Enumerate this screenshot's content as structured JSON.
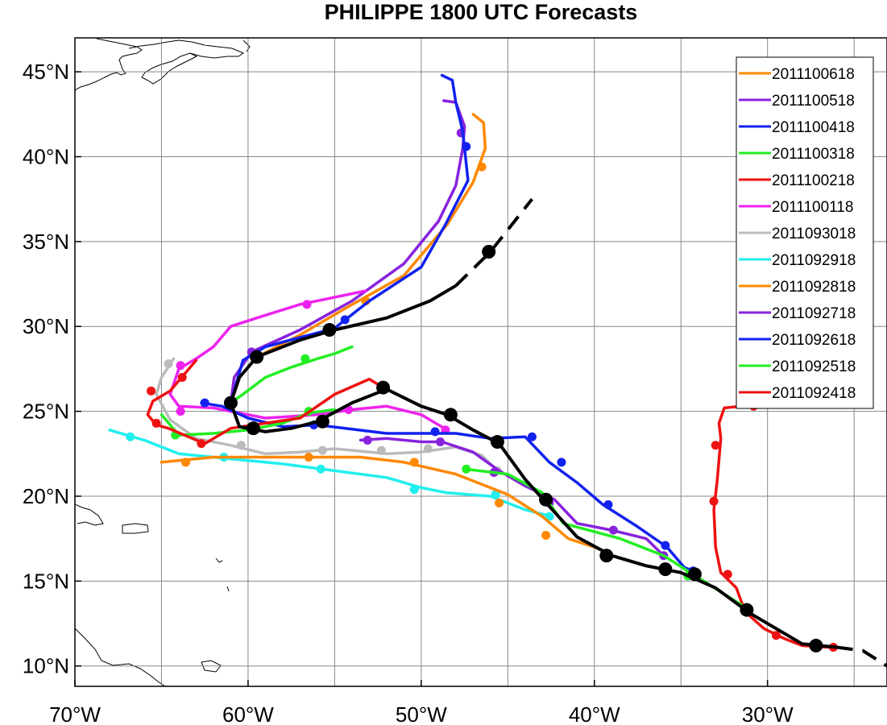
{
  "chart_data": {
    "type": "line",
    "title": "PHILIPPE 1800 UTC Forecasts",
    "xlabel": "",
    "ylabel": "",
    "xlim": [
      -70,
      -23.1
    ],
    "ylim": [
      8.8,
      47
    ],
    "x_ticks": [
      {
        "value": -70,
        "label": "70°W"
      },
      {
        "value": -60,
        "label": "60°W"
      },
      {
        "value": -50,
        "label": "50°W"
      },
      {
        "value": -40,
        "label": "40°W"
      },
      {
        "value": -30,
        "label": "30°W"
      }
    ],
    "y_ticks": [
      {
        "value": 10,
        "label": "10°N"
      },
      {
        "value": 15,
        "label": "15°N"
      },
      {
        "value": 20,
        "label": "20°N"
      },
      {
        "value": 25,
        "label": "25°N"
      },
      {
        "value": 30,
        "label": "30°N"
      },
      {
        "value": 35,
        "label": "35°N"
      },
      {
        "value": 40,
        "label": "40°N"
      },
      {
        "value": 45,
        "label": "45°N"
      }
    ],
    "grid_lon": [
      -65,
      -60,
      -55,
      -50,
      -45,
      -40,
      -35,
      -30,
      -25
    ],
    "grid_lat": [
      10,
      15,
      20,
      25,
      30,
      35,
      40,
      45
    ],
    "grid": true,
    "legend_position": "top-right",
    "best_track": {
      "color": "#000000",
      "solid": [
        [
          -26,
          11.1
        ],
        [
          -28,
          11.3
        ],
        [
          -31,
          13.1
        ],
        [
          -33,
          14.6
        ],
        [
          -35,
          15.5
        ],
        [
          -37,
          15.9
        ],
        [
          -39,
          16.5
        ],
        [
          -41,
          17.6
        ],
        [
          -42.6,
          19.4
        ],
        [
          -44,
          21
        ],
        [
          -45.5,
          23.1
        ],
        [
          -47,
          23.9
        ],
        [
          -48.5,
          24.8
        ],
        [
          -50,
          25.3
        ],
        [
          -52,
          26.3
        ],
        [
          -54,
          25.5
        ],
        [
          -56,
          24.4
        ],
        [
          -57.5,
          24
        ],
        [
          -59,
          23.8
        ],
        [
          -60.5,
          24.1
        ],
        [
          -61,
          25.5
        ],
        [
          -60.5,
          27
        ],
        [
          -59.5,
          28.2
        ],
        [
          -57,
          29.2
        ],
        [
          -55,
          29.8
        ],
        [
          -52,
          30.5
        ],
        [
          -49.5,
          31.5
        ],
        [
          -48,
          32.4
        ]
      ],
      "dashed_end": [
        [
          -26,
          11.1
        ],
        [
          -24.5,
          10.9
        ],
        [
          -23.1,
          10
        ]
      ],
      "dashed_start": [
        [
          -48,
          32.4
        ],
        [
          -46,
          34.4
        ],
        [
          -43.6,
          37.5
        ]
      ],
      "points": [
        [
          -27.2,
          11.2
        ],
        [
          -31.2,
          13.3
        ],
        [
          -34.2,
          15.4
        ],
        [
          -35.9,
          15.7
        ],
        [
          -39.3,
          16.5
        ],
        [
          -42.8,
          19.8
        ],
        [
          -45.6,
          23.2
        ],
        [
          -48.3,
          24.8
        ],
        [
          -52.2,
          26.4
        ],
        [
          -55.7,
          24.4
        ],
        [
          -59.7,
          24
        ],
        [
          -61,
          25.5
        ],
        [
          -59.5,
          28.2
        ],
        [
          -55.3,
          29.8
        ],
        [
          -46.1,
          34.4
        ]
      ]
    },
    "series": [
      {
        "name": "2011100618",
        "color": "#ff8800",
        "path": [
          [
            -59.5,
            28.2
          ],
          [
            -57,
            29.5
          ],
          [
            -54.5,
            31
          ],
          [
            -51,
            33
          ],
          [
            -48.5,
            36
          ],
          [
            -47,
            38.5
          ],
          [
            -46.3,
            40.5
          ],
          [
            -46.4,
            42
          ],
          [
            -47,
            42.5
          ]
        ],
        "points": [
          [
            -59.5,
            28.2
          ],
          [
            -53.2,
            31.5
          ],
          [
            -46.5,
            39.4
          ]
        ]
      },
      {
        "name": "2011100518",
        "color": "#8822dd",
        "path": [
          [
            -61,
            25.5
          ],
          [
            -60.8,
            27
          ],
          [
            -59.8,
            28.5
          ],
          [
            -57,
            29.8
          ],
          [
            -54,
            31.5
          ],
          [
            -51,
            33.7
          ],
          [
            -49,
            36.2
          ],
          [
            -48,
            38.3
          ],
          [
            -47.6,
            40.5
          ],
          [
            -47.5,
            41.8
          ],
          [
            -48,
            43.2
          ],
          [
            -48.7,
            43.3
          ]
        ],
        "points": [
          [
            -61,
            25.5
          ],
          [
            -59.8,
            28.5
          ],
          [
            -47.7,
            41.4
          ]
        ]
      },
      {
        "name": "2011100418",
        "color": "#1122ee",
        "path": [
          [
            -61,
            25.5
          ],
          [
            -60.3,
            28
          ],
          [
            -59,
            28.8
          ],
          [
            -55,
            29.9
          ],
          [
            -53,
            31.5
          ],
          [
            -50,
            33.5
          ],
          [
            -48.6,
            36
          ],
          [
            -47.3,
            38.6
          ],
          [
            -47.6,
            41.5
          ],
          [
            -48,
            43.2
          ],
          [
            -48.2,
            44.5
          ],
          [
            -48.8,
            44.8
          ]
        ],
        "points": [
          [
            -61,
            25.5
          ],
          [
            -54.4,
            30.4
          ],
          [
            -47.4,
            40.6
          ]
        ]
      },
      {
        "name": "2011100318",
        "color": "#22ee22",
        "path": [
          [
            -61,
            25.5
          ],
          [
            -60.3,
            26
          ],
          [
            -59,
            27
          ],
          [
            -57.5,
            27.6
          ],
          [
            -56,
            28.1
          ],
          [
            -55,
            28.4
          ],
          [
            -54,
            28.8
          ]
        ],
        "points": [
          [
            -56.7,
            28.1
          ]
        ]
      },
      {
        "name": "2011100218",
        "color": "#ee1111",
        "path": [
          [
            -31,
            25.3
          ],
          [
            -31.5,
            25.3
          ],
          [
            -32.5,
            25.2
          ],
          [
            -32.8,
            24.3
          ],
          [
            -32.7,
            23.4
          ],
          [
            -32.9,
            21
          ],
          [
            -33.1,
            19.2
          ],
          [
            -33,
            17
          ],
          [
            -32.7,
            15.5
          ],
          [
            -31.8,
            14.6
          ],
          [
            -31.3,
            13.2
          ],
          [
            -30.2,
            12.2
          ],
          [
            -29,
            11.6
          ],
          [
            -28,
            11.2
          ],
          [
            -26.5,
            11.1
          ]
        ],
        "points": [
          [
            -30.8,
            25.3
          ],
          [
            -33,
            23
          ],
          [
            -33.1,
            19.7
          ],
          [
            -32.3,
            15.4
          ],
          [
            -31.2,
            13.3
          ],
          [
            -29.5,
            11.8
          ],
          [
            -27.3,
            11.2
          ],
          [
            -26.2,
            11.1
          ]
        ]
      },
      {
        "name": "2011100118",
        "color": "#ee22ee",
        "path": [
          [
            -53.2,
            32.1
          ],
          [
            -57,
            31.3
          ],
          [
            -59.5,
            30.5
          ],
          [
            -61,
            30
          ],
          [
            -62,
            28.8
          ],
          [
            -63,
            28.1
          ],
          [
            -64,
            27.5
          ],
          [
            -64.5,
            26
          ],
          [
            -64,
            25.3
          ],
          [
            -62,
            25.2
          ],
          [
            -59,
            24.6
          ],
          [
            -56,
            24.8
          ],
          [
            -54,
            25.1
          ],
          [
            -52,
            25.3
          ],
          [
            -50,
            24.8
          ],
          [
            -48.5,
            23.9
          ]
        ],
        "points": [
          [
            -56.6,
            31.3
          ],
          [
            -63.9,
            27.7
          ],
          [
            -63.9,
            25
          ],
          [
            -54.2,
            25.1
          ],
          [
            -48.6,
            23.9
          ]
        ]
      },
      {
        "name": "2011093018",
        "color": "#bbbbbb",
        "path": [
          [
            -64.3,
            28.1
          ],
          [
            -65,
            27
          ],
          [
            -65.3,
            26
          ],
          [
            -64.5,
            24.5
          ],
          [
            -63,
            23.4
          ],
          [
            -61,
            23
          ],
          [
            -59,
            22.5
          ],
          [
            -57,
            22.6
          ],
          [
            -55,
            22.8
          ],
          [
            -52,
            22.5
          ],
          [
            -50,
            22.6
          ],
          [
            -48,
            22.9
          ],
          [
            -46.5,
            22.4
          ],
          [
            -45.6,
            21.5
          ]
        ],
        "points": [
          [
            -64.6,
            27.8
          ],
          [
            -60.4,
            23
          ],
          [
            -55.7,
            22.7
          ],
          [
            -52.3,
            22.7
          ],
          [
            -49.6,
            22.8
          ],
          [
            -45.6,
            21.5
          ]
        ]
      },
      {
        "name": "2011092918",
        "color": "#22eeee",
        "path": [
          [
            -68,
            23.9
          ],
          [
            -66,
            23.3
          ],
          [
            -64,
            22.5
          ],
          [
            -61,
            22.2
          ],
          [
            -58,
            21.9
          ],
          [
            -55,
            21.5
          ],
          [
            -52,
            21.1
          ],
          [
            -50,
            20.5
          ],
          [
            -48.5,
            20.2
          ],
          [
            -46,
            20
          ],
          [
            -44,
            19.2
          ],
          [
            -42.4,
            18.8
          ]
        ],
        "points": [
          [
            -66.8,
            23.5
          ],
          [
            -61.4,
            22.3
          ],
          [
            -55.8,
            21.6
          ],
          [
            -50.4,
            20.4
          ],
          [
            -45.7,
            20.1
          ],
          [
            -42.6,
            18.8
          ]
        ]
      },
      {
        "name": "2011092818",
        "color": "#ff8800",
        "path": [
          [
            -65,
            22
          ],
          [
            -62,
            22.3
          ],
          [
            -59,
            22.3
          ],
          [
            -56,
            22.3
          ],
          [
            -53.5,
            22.3
          ],
          [
            -51,
            22
          ],
          [
            -48,
            21.3
          ],
          [
            -45,
            20.1
          ],
          [
            -43,
            18.8
          ],
          [
            -41.5,
            17.5
          ],
          [
            -40,
            17
          ],
          [
            -39,
            16.6
          ]
        ],
        "points": [
          [
            -63.6,
            22
          ],
          [
            -56.5,
            22.3
          ],
          [
            -50.4,
            22
          ],
          [
            -45.5,
            19.6
          ],
          [
            -42.8,
            17.7
          ],
          [
            -39.3,
            16.6
          ]
        ]
      },
      {
        "name": "2011092718",
        "color": "#8822dd",
        "path": [
          [
            -53.5,
            23.3
          ],
          [
            -52,
            23.4
          ],
          [
            -50,
            23.2
          ],
          [
            -48.8,
            23.2
          ],
          [
            -47,
            22.6
          ],
          [
            -45.5,
            21.5
          ],
          [
            -44,
            20.6
          ],
          [
            -42.3,
            19.8
          ],
          [
            -41,
            18.4
          ],
          [
            -39,
            18
          ],
          [
            -37,
            17.5
          ],
          [
            -36,
            16.5
          ]
        ],
        "points": [
          [
            -53.1,
            23.3
          ],
          [
            -48.9,
            23.2
          ],
          [
            -45.8,
            21.4
          ],
          [
            -42.6,
            19.6
          ],
          [
            -38.9,
            18
          ],
          [
            -36,
            16.5
          ]
        ]
      },
      {
        "name": "2011092618",
        "color": "#1122ee",
        "path": [
          [
            -62.7,
            25.5
          ],
          [
            -61.5,
            25.3
          ],
          [
            -60,
            24.6
          ],
          [
            -58,
            24.1
          ],
          [
            -56,
            24.2
          ],
          [
            -52,
            23.7
          ],
          [
            -48,
            23.7
          ],
          [
            -46,
            23.4
          ],
          [
            -44,
            23.5
          ],
          [
            -42.6,
            22
          ],
          [
            -41,
            20.8
          ],
          [
            -39.5,
            19.5
          ],
          [
            -37.5,
            18.2
          ],
          [
            -35.8,
            17
          ],
          [
            -34.8,
            15.8
          ],
          [
            -34,
            15.5
          ]
        ],
        "points": [
          [
            -62.5,
            25.5
          ],
          [
            -56.2,
            24.2
          ],
          [
            -49.2,
            23.8
          ],
          [
            -43.6,
            23.5
          ],
          [
            -41.9,
            22
          ],
          [
            -39.2,
            19.5
          ],
          [
            -35.9,
            17.1
          ],
          [
            -34.3,
            15.6
          ]
        ]
      },
      {
        "name": "2011092518",
        "color": "#22ee22",
        "path": [
          [
            -65,
            24.8
          ],
          [
            -64,
            23.6
          ],
          [
            -62,
            23.7
          ],
          [
            -60,
            23.9
          ],
          [
            -58,
            24.3
          ],
          [
            -56.5,
            24.9
          ],
          [
            -55,
            25.1
          ]
        ],
        "points": [
          [
            -64.2,
            23.6
          ],
          [
            -59.7,
            23.9
          ],
          [
            -56.5,
            25
          ]
        ],
        "path2": [
          [
            -47.5,
            21.6
          ],
          [
            -45,
            21.3
          ],
          [
            -43,
            20.2
          ],
          [
            -41.8,
            18.4
          ],
          [
            -38.5,
            17.5
          ],
          [
            -36,
            16.5
          ],
          [
            -34,
            15.2
          ],
          [
            -31.2,
            13.4
          ]
        ],
        "points2": [
          [
            -47.4,
            21.6
          ],
          [
            -34.6,
            15.3
          ],
          [
            -31.2,
            13.3
          ]
        ]
      },
      {
        "name": "2011092418",
        "color": "#ee1111",
        "path": [
          [
            -63,
            28
          ],
          [
            -64.5,
            26.2
          ],
          [
            -65.5,
            25.6
          ],
          [
            -65.8,
            24.8
          ],
          [
            -65.3,
            24.2
          ],
          [
            -64.6,
            24
          ],
          [
            -62.5,
            23.1
          ]
        ],
        "points": [
          [
            -63.8,
            27
          ],
          [
            -65.6,
            26.2
          ],
          [
            -65.3,
            24.3
          ],
          [
            -62.7,
            23.1
          ]
        ],
        "path2": [
          [
            -62.5,
            23.1
          ],
          [
            -61,
            24
          ],
          [
            -59,
            24.3
          ],
          [
            -57,
            24.6
          ],
          [
            -55,
            26
          ],
          [
            -53,
            26.9
          ],
          [
            -52.2,
            26.4
          ]
        ],
        "points2": [
          [
            -52.2,
            26.4
          ]
        ]
      }
    ]
  }
}
